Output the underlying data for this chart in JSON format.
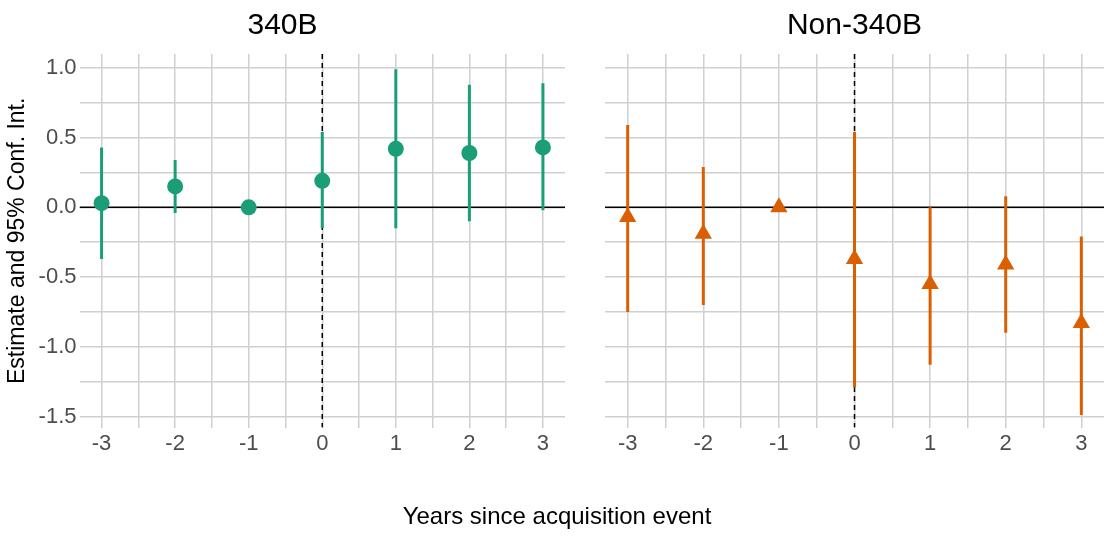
{
  "chart_data": [
    {
      "type": "scatter",
      "title": "340B",
      "xlabel": "Years since acquisition event",
      "ylabel": "Estimate and 95% Conf. Int.",
      "marker": "circle",
      "grid": true,
      "x": [
        -3,
        -2,
        -1,
        0,
        1,
        2,
        3
      ],
      "series": [
        {
          "color": "#1b9e77",
          "values": [
            0.03,
            0.15,
            0,
            0.19,
            0.42,
            0.39,
            0.43
          ],
          "errors": [
            [
              -0.37,
              0.43
            ],
            [
              -0.04,
              0.34
            ],
            null,
            [
              -0.15,
              0.54
            ],
            [
              -0.15,
              0.99
            ],
            [
              -0.1,
              0.88
            ],
            [
              -0.02,
              0.89
            ]
          ]
        }
      ],
      "xlim": [
        -3.3,
        3.3
      ],
      "xticks": [
        -3,
        {
          "value": -2.5,
          "label": null
        },
        -2,
        {
          "value": -1.5,
          "label": null
        },
        -1,
        {
          "value": -0.5,
          "label": null
        },
        0,
        {
          "value": 0.5,
          "label": null
        },
        1,
        {
          "value": 1.5,
          "label": null
        },
        2,
        {
          "value": 2.5,
          "label": null
        },
        3
      ],
      "ylim": [
        -1.58,
        1.1
      ],
      "yticks": [
        {
          "value": -1.5,
          "label": "-1.5"
        },
        {
          "value": -1.25,
          "label": null
        },
        {
          "value": -1,
          "label": "-1.0"
        },
        {
          "value": -0.75,
          "label": null
        },
        {
          "value": -0.5,
          "label": "-0.5"
        },
        {
          "value": -0.25,
          "label": null
        },
        {
          "value": 0,
          "label": "0.0"
        },
        {
          "value": 0.25,
          "label": null
        },
        {
          "value": 0.5,
          "label": "0.5"
        },
        {
          "value": 0.75,
          "label": null
        },
        {
          "value": 1,
          "label": "1.0"
        }
      ],
      "ref_lines": [
        {
          "axis": "y",
          "value": 0,
          "color": "#000000",
          "line_style": "solid"
        },
        {
          "axis": "x",
          "value": 0,
          "color": "#000000",
          "line_style": "dashed"
        }
      ]
    },
    {
      "type": "scatter",
      "title": "Non-340B",
      "marker": "triangle",
      "grid": true,
      "tick_labels": "x",
      "x": [
        -3,
        -2,
        -1,
        0,
        1,
        2,
        3
      ],
      "series": [
        {
          "color": "#d95f02",
          "values": [
            -0.07,
            -0.19,
            0,
            -0.37,
            -0.55,
            -0.41,
            -0.83
          ],
          "errors": [
            [
              -0.75,
              0.59
            ],
            [
              -0.7,
              0.29
            ],
            null,
            [
              -1.29,
              0.54
            ],
            [
              -1.13,
              0.0
            ],
            [
              -0.9,
              0.08
            ],
            [
              -1.49,
              -0.21
            ]
          ]
        }
      ],
      "xlim": [
        -3.3,
        3.3
      ],
      "xticks": [
        -3,
        {
          "value": -2.5,
          "label": null
        },
        -2,
        {
          "value": -1.5,
          "label": null
        },
        -1,
        {
          "value": -0.5,
          "label": null
        },
        0,
        {
          "value": 0.5,
          "label": null
        },
        1,
        {
          "value": 1.5,
          "label": null
        },
        2,
        {
          "value": 2.5,
          "label": null
        },
        3
      ],
      "ylim": [
        -1.58,
        1.1
      ],
      "yticks": [
        {
          "value": -1.5,
          "label": null
        },
        {
          "value": -1.25,
          "label": null
        },
        {
          "value": -1,
          "label": null
        },
        {
          "value": -0.75,
          "label": null
        },
        {
          "value": -0.5,
          "label": null
        },
        {
          "value": -0.25,
          "label": null
        },
        {
          "value": 0,
          "label": null
        },
        {
          "value": 0.25,
          "label": null
        },
        {
          "value": 0.5,
          "label": null
        },
        {
          "value": 0.75,
          "label": null
        },
        {
          "value": 1,
          "label": null
        }
      ],
      "ref_lines": [
        {
          "axis": "y",
          "value": 0,
          "color": "#000000",
          "line_style": "solid"
        },
        {
          "axis": "x",
          "value": 0,
          "color": "#000000",
          "line_style": "dashed"
        }
      ]
    }
  ]
}
